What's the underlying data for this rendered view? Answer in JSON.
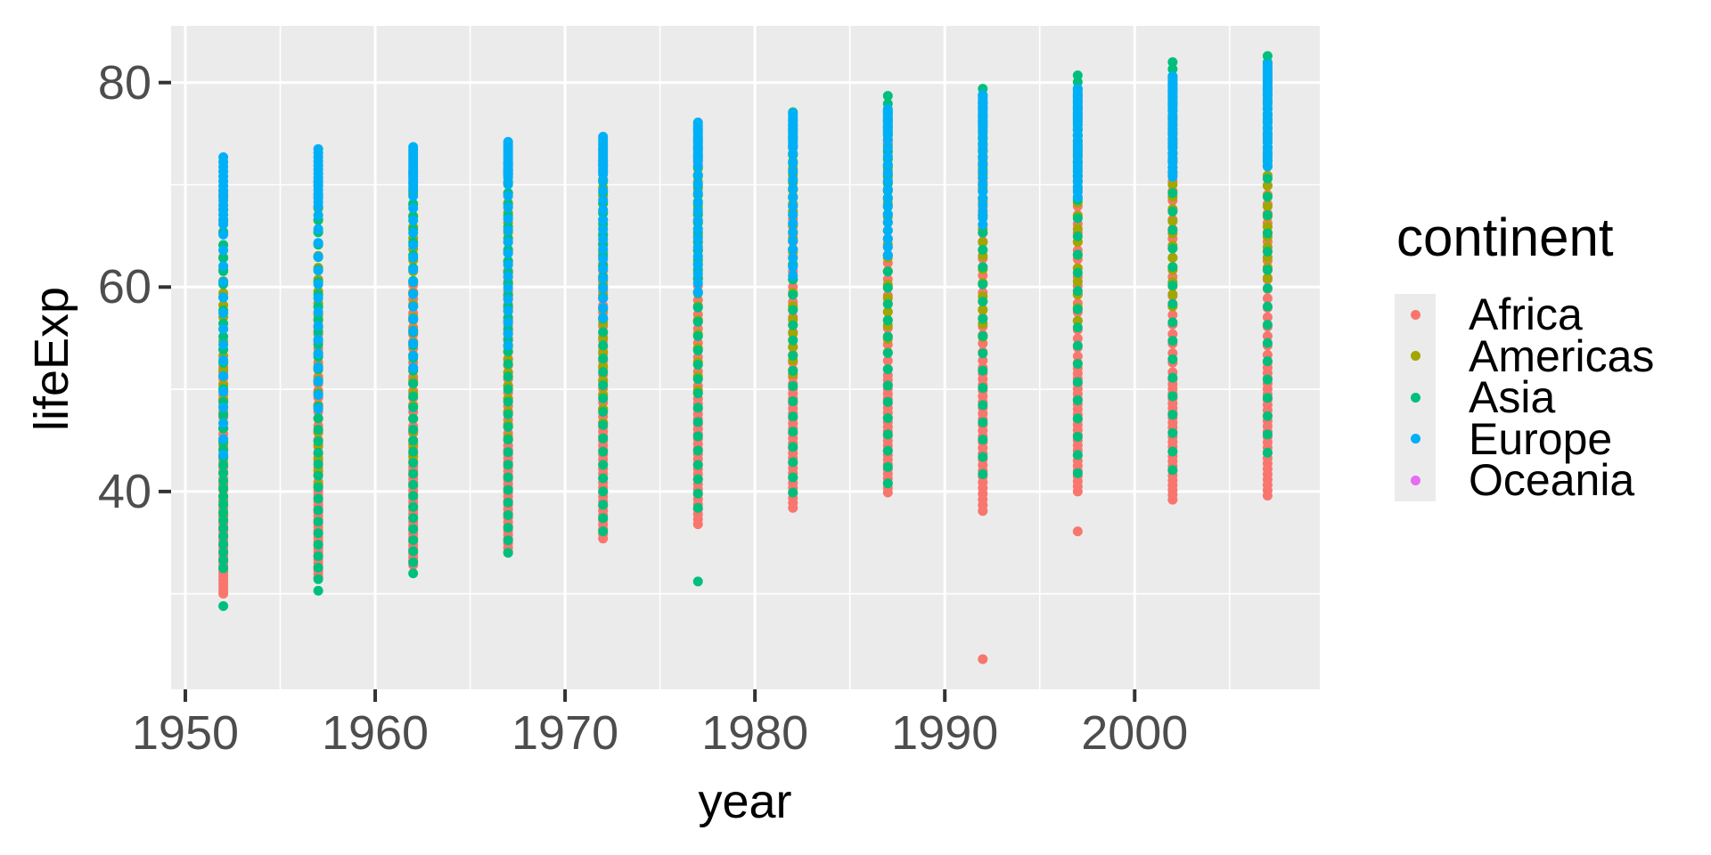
{
  "figure": {
    "background": "#FFFFFF"
  },
  "chart_data": {
    "type": "scatter",
    "title": "",
    "xlabel": "year",
    "ylabel": "lifeExp",
    "x_ticks": [
      1950,
      1960,
      1970,
      1980,
      1990,
      2000
    ],
    "y_ticks": [
      40,
      60,
      80
    ],
    "xlim": [
      1949.25,
      2009.75
    ],
    "ylim": [
      20.65,
      85.55
    ],
    "grid": "on",
    "colors": {
      "panel_background": "#EBEBEB",
      "grid_major": "#FFFFFF",
      "grid_minor": "#FFFFFF",
      "tick_mark": "#333333",
      "tick_label": "#4D4D4D",
      "axis_title": "#000000"
    },
    "years": [
      1952,
      1957,
      1962,
      1967,
      1972,
      1977,
      1982,
      1987,
      1992,
      1997,
      2002,
      2007
    ],
    "legend": {
      "title": "continent",
      "position": "right"
    },
    "draw_order": [
      "Africa",
      "Americas",
      "Asia",
      "Oceania",
      "Europe"
    ],
    "series": [
      {
        "name": "Africa",
        "color": "#F8766D",
        "count": 52,
        "min_med_max": [
          [
            30.0,
            38.8,
            52.7
          ],
          [
            31.6,
            40.6,
            58.1
          ],
          [
            32.8,
            42.6,
            60.2
          ],
          [
            34.1,
            44.7,
            61.6
          ],
          [
            35.4,
            47.0,
            64.3
          ],
          [
            36.8,
            49.3,
            67.1
          ],
          [
            38.4,
            50.8,
            69.6
          ],
          [
            39.9,
            51.6,
            71.9
          ],
          [
            38.1,
            52.4,
            73.6
          ],
          [
            40.0,
            52.8,
            74.8
          ],
          [
            39.2,
            51.2,
            75.0
          ],
          [
            39.6,
            52.9,
            76.4
          ]
        ]
      },
      {
        "name": "Americas",
        "color": "#A3A500",
        "count": 25,
        "min_med_max": [
          [
            37.6,
            54.7,
            68.8
          ],
          [
            40.7,
            56.1,
            70.0
          ],
          [
            43.4,
            58.3,
            71.3
          ],
          [
            45.3,
            60.5,
            72.1
          ],
          [
            46.7,
            63.4,
            72.9
          ],
          [
            49.9,
            66.4,
            74.2
          ],
          [
            51.5,
            67.4,
            75.8
          ],
          [
            53.6,
            69.5,
            76.9
          ],
          [
            55.1,
            71.0,
            78.0
          ],
          [
            56.7,
            72.1,
            78.6
          ],
          [
            58.1,
            72.4,
            79.8
          ],
          [
            60.9,
            72.9,
            80.7
          ]
        ]
      },
      {
        "name": "Asia",
        "color": "#00BF7D",
        "count": 33,
        "min_med_max": [
          [
            32.5,
            44.9,
            65.4
          ],
          [
            30.3,
            48.3,
            67.8
          ],
          [
            32.0,
            49.3,
            69.4
          ],
          [
            34.0,
            53.7,
            71.4
          ],
          [
            36.1,
            56.9,
            73.4
          ],
          [
            38.4,
            60.8,
            75.4
          ],
          [
            39.9,
            63.7,
            77.1
          ],
          [
            40.8,
            66.3,
            78.7
          ],
          [
            41.7,
            68.7,
            79.4
          ],
          [
            41.8,
            70.3,
            80.7
          ],
          [
            42.1,
            71.0,
            82.0
          ],
          [
            43.8,
            72.4,
            82.6
          ]
        ]
      },
      {
        "name": "Europe",
        "color": "#00B0F6",
        "count": 30,
        "min_med_max": [
          [
            43.6,
            65.9,
            72.7
          ],
          [
            48.1,
            67.7,
            73.5
          ],
          [
            52.1,
            69.5,
            73.7
          ],
          [
            54.3,
            70.6,
            74.2
          ],
          [
            57.0,
            70.9,
            74.7
          ],
          [
            59.5,
            72.3,
            76.1
          ],
          [
            61.1,
            73.5,
            77.0
          ],
          [
            63.1,
            74.8,
            77.4
          ],
          [
            66.1,
            75.5,
            78.8
          ],
          [
            68.8,
            76.1,
            79.4
          ],
          [
            70.8,
            77.5,
            80.6
          ],
          [
            71.8,
            78.6,
            81.8
          ]
        ]
      },
      {
        "name": "Oceania",
        "color": "#E76BF3",
        "count": 2,
        "values_by_year": [
          [
            69.1,
            69.4
          ],
          [
            70.3,
            70.3
          ],
          [
            70.9,
            71.2
          ],
          [
            71.1,
            71.5
          ],
          [
            71.9,
            71.9
          ],
          [
            73.5,
            72.2
          ],
          [
            74.7,
            73.8
          ],
          [
            76.3,
            74.3
          ],
          [
            77.6,
            76.3
          ],
          [
            78.8,
            77.6
          ],
          [
            80.4,
            79.1
          ],
          [
            81.2,
            80.2
          ]
        ]
      }
    ],
    "outliers": [
      {
        "continent": "Asia",
        "year": 1952,
        "lifeExp": 28.8
      },
      {
        "continent": "Asia",
        "year": 1977,
        "lifeExp": 31.2
      },
      {
        "continent": "Africa",
        "year": 1992,
        "lifeExp": 23.6
      },
      {
        "continent": "Africa",
        "year": 1997,
        "lifeExp": 36.1
      }
    ]
  }
}
